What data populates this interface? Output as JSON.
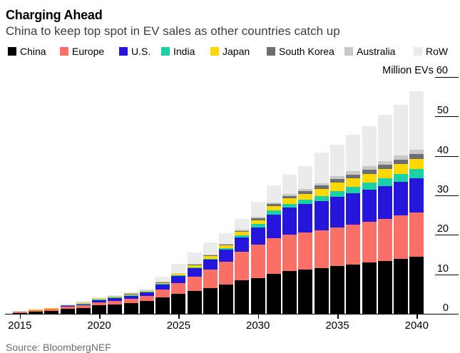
{
  "header": {
    "title": "Charging Ahead",
    "subtitle": "China to keep top spot in EV sales as other countries catch up"
  },
  "axis": {
    "unit_label": "Million EVs",
    "y_ticks": [
      60,
      50,
      40,
      30,
      20,
      10,
      0
    ],
    "x_ticks": [
      2015,
      2020,
      2025,
      2030,
      2035,
      2040
    ]
  },
  "source": "Source: BloombergNEF",
  "chart_data": {
    "type": "bar",
    "stacked": true,
    "title": "Charging Ahead",
    "subtitle": "China to keep top spot in EV sales as other countries catch up",
    "ylabel": "Million EVs",
    "ylim": [
      0,
      60
    ],
    "grid": false,
    "legend_position": "top",
    "x": [
      2015,
      2016,
      2017,
      2018,
      2019,
      2020,
      2021,
      2022,
      2023,
      2024,
      2025,
      2026,
      2027,
      2028,
      2029,
      2030,
      2031,
      2032,
      2033,
      2034,
      2035,
      2036,
      2037,
      2038,
      2039,
      2040
    ],
    "series": [
      {
        "name": "China",
        "color": "#000000",
        "values": [
          0.25,
          0.6,
          0.8,
          1.25,
          1.5,
          2.1,
          2.4,
          2.8,
          3.3,
          4.2,
          5.0,
          5.7,
          6.5,
          7.4,
          8.5,
          9.1,
          10.2,
          10.9,
          11.2,
          11.5,
          12.1,
          12.5,
          13.0,
          13.4,
          13.9,
          14.5
        ]
      },
      {
        "name": "Europe",
        "color": "#fa7066",
        "values": [
          0.3,
          0.32,
          0.4,
          0.5,
          0.6,
          0.8,
          0.85,
          1.0,
          1.2,
          2.0,
          2.8,
          3.7,
          4.7,
          5.8,
          7.2,
          8.4,
          9.0,
          9.2,
          9.4,
          9.6,
          9.8,
          10.1,
          10.4,
          10.7,
          11.0,
          11.2
        ]
      },
      {
        "name": "U.S.",
        "color": "#2616dc",
        "values": [
          0.1,
          0.16,
          0.2,
          0.36,
          0.45,
          0.7,
          0.8,
          0.9,
          1.0,
          1.3,
          1.8,
          2.2,
          2.6,
          3.1,
          3.7,
          4.4,
          6.0,
          6.8,
          7.2,
          7.5,
          7.8,
          8.0,
          8.1,
          8.3,
          8.5,
          8.7
        ]
      },
      {
        "name": "India",
        "color": "#1bd0a5",
        "values": [
          0.0,
          0.0,
          0.01,
          0.01,
          0.02,
          0.02,
          0.03,
          0.04,
          0.04,
          0.05,
          0.08,
          0.12,
          0.18,
          0.3,
          0.5,
          0.85,
          0.95,
          1.0,
          1.1,
          1.25,
          1.4,
          1.55,
          1.7,
          1.85,
          2.0,
          2.2
        ]
      },
      {
        "name": "Japan",
        "color": "#ffd800",
        "values": [
          0.02,
          0.02,
          0.02,
          0.03,
          0.35,
          0.3,
          0.3,
          0.35,
          0.35,
          0.4,
          0.5,
          0.65,
          0.7,
          0.7,
          0.8,
          0.9,
          1.1,
          1.3,
          1.45,
          1.8,
          2.1,
          2.2,
          2.3,
          2.4,
          2.55,
          2.7
        ]
      },
      {
        "name": "South Korea",
        "color": "#6d6e71",
        "values": [
          0.01,
          0.01,
          0.01,
          0.02,
          0.03,
          0.04,
          0.05,
          0.06,
          0.06,
          0.08,
          0.12,
          0.15,
          0.2,
          0.26,
          0.35,
          0.48,
          0.55,
          0.62,
          0.7,
          0.8,
          0.9,
          0.95,
          1.0,
          1.05,
          1.1,
          1.2
        ]
      },
      {
        "name": "Australia",
        "color": "#c8c9c7",
        "values": [
          0.0,
          0.0,
          0.01,
          0.01,
          0.02,
          0.02,
          0.03,
          0.04,
          0.05,
          0.05,
          0.07,
          0.1,
          0.13,
          0.2,
          0.28,
          0.38,
          0.45,
          0.5,
          0.55,
          0.68,
          0.8,
          0.85,
          0.9,
          0.95,
          1.0,
          1.1
        ]
      },
      {
        "name": "RoW",
        "color": "#ebebeb",
        "values": [
          0.07,
          0.15,
          0.2,
          0.3,
          0.2,
          0.1,
          0.15,
          0.2,
          0.3,
          1.4,
          2.3,
          3.0,
          3.0,
          2.65,
          2.65,
          3.9,
          4.3,
          5.0,
          5.9,
          7.7,
          7.9,
          9.15,
          10.1,
          11.75,
          12.95,
          14.8
        ]
      }
    ]
  }
}
